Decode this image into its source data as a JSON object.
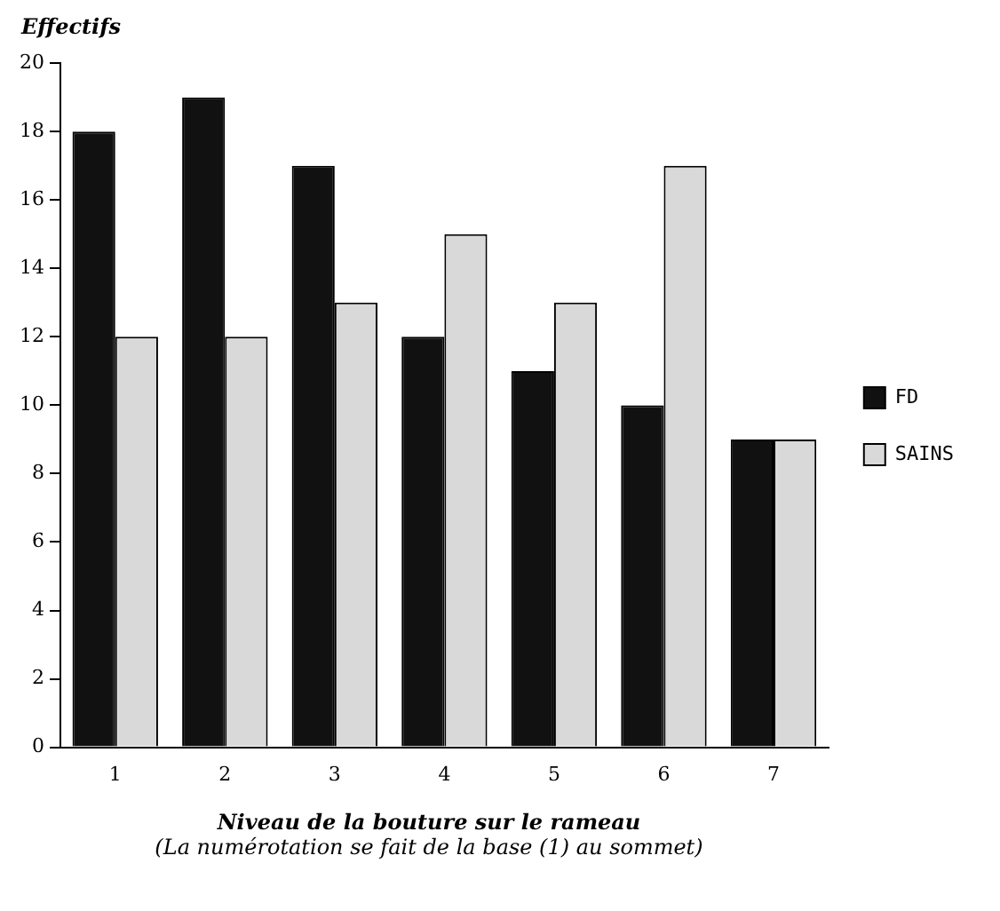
{
  "chart_data": {
    "type": "bar",
    "ylabel": "Effectifs",
    "xlabel": "Niveau de la bouture sur le rameau",
    "annotations": [
      "(La numérotation se fait de la base (1) au sommet)"
    ],
    "categories": [
      "1",
      "2",
      "3",
      "4",
      "5",
      "6",
      "7"
    ],
    "series": [
      {
        "name": "FD",
        "color": "#111111",
        "values": [
          18,
          19,
          17,
          12,
          11,
          10,
          9
        ]
      },
      {
        "name": "SAINS",
        "color": "#d9d9d9",
        "values": [
          12,
          12,
          13,
          15,
          13,
          17,
          9
        ]
      }
    ],
    "ylim": [
      0,
      20
    ],
    "yticks": [
      0,
      2,
      4,
      6,
      8,
      10,
      12,
      14,
      16,
      18,
      20
    ],
    "grid": false,
    "legend": "right"
  }
}
